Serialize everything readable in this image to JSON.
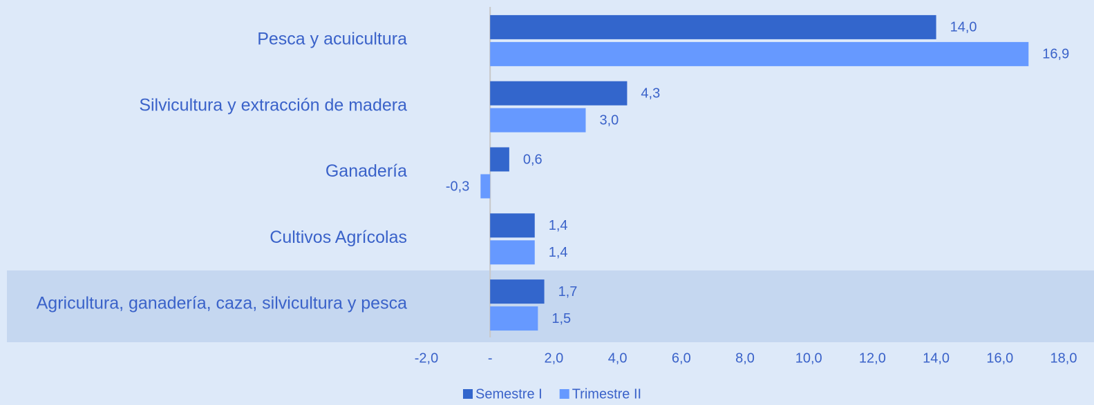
{
  "chart_data": {
    "type": "hbar",
    "categories": [
      "Pesca y acuicultura",
      "Silvicultura y extracción de madera",
      "Ganadería",
      "Cultivos Agrícolas",
      "Agricultura, ganadería, caza, silvicultura y pesca"
    ],
    "series": [
      {
        "name": "Semestre I",
        "color": "#3366cc",
        "values": [
          14.0,
          4.3,
          0.6,
          1.4,
          1.7
        ],
        "value_labels": [
          "14,0",
          "4,3",
          "0,6",
          "1,4",
          "1,7"
        ]
      },
      {
        "name": "Trimestre II",
        "color": "#6699ff",
        "values": [
          16.9,
          3.0,
          -0.3,
          1.4,
          1.5
        ],
        "value_labels": [
          "16,9",
          "3,0",
          "-0,3",
          "1,4",
          "1,5"
        ]
      }
    ],
    "xlim": [
      -2,
      18
    ],
    "xticks": [
      {
        "value": -2,
        "label": "-2,0"
      },
      {
        "value": 0,
        "label": "-"
      },
      {
        "value": 2,
        "label": "2,0"
      },
      {
        "value": 4,
        "label": "4,0"
      },
      {
        "value": 6,
        "label": "6,0"
      },
      {
        "value": 8,
        "label": "8,0"
      },
      {
        "value": 10,
        "label": "10,0"
      },
      {
        "value": 12,
        "label": "12,0"
      },
      {
        "value": 14,
        "label": "14,0"
      },
      {
        "value": 16,
        "label": "16,0"
      },
      {
        "value": 18,
        "label": "18,0"
      }
    ],
    "legend": "bottom"
  }
}
